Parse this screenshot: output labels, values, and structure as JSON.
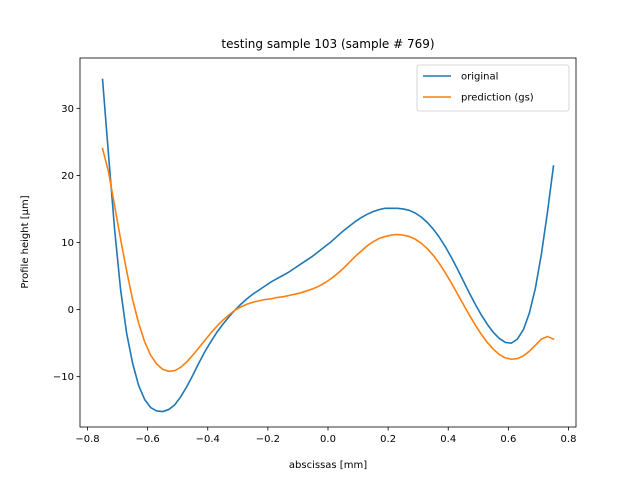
{
  "chart_data": {
    "type": "line",
    "title": "testing sample 103 (sample # 769)",
    "xlabel": "abscissas [mm]",
    "ylabel": "Profile height [μm]",
    "xlim": [
      -0.825,
      0.825
    ],
    "ylim": [
      -17.5,
      37.5
    ],
    "xticks": [
      -0.8,
      -0.6,
      -0.4,
      -0.2,
      0.0,
      0.2,
      0.4,
      0.6,
      0.8
    ],
    "xtick_labels": [
      "−0.8",
      "−0.6",
      "−0.4",
      "−0.2",
      "0.0",
      "0.2",
      "0.4",
      "0.6",
      "0.8"
    ],
    "yticks": [
      -10,
      0,
      10,
      20,
      30
    ],
    "ytick_labels": [
      "−10",
      "0",
      "10",
      "20",
      "30"
    ],
    "grid": false,
    "legend_position": "top-right",
    "series": [
      {
        "name": "original",
        "color": "#1f77b4",
        "points": [
          [
            -0.75,
            34.3
          ],
          [
            -0.73,
            23.0
          ],
          [
            -0.71,
            12.0
          ],
          [
            -0.69,
            3.0
          ],
          [
            -0.67,
            -3.5
          ],
          [
            -0.65,
            -8.0
          ],
          [
            -0.63,
            -11.3
          ],
          [
            -0.61,
            -13.4
          ],
          [
            -0.59,
            -14.6
          ],
          [
            -0.57,
            -15.1
          ],
          [
            -0.55,
            -15.2
          ],
          [
            -0.53,
            -14.9
          ],
          [
            -0.51,
            -14.2
          ],
          [
            -0.49,
            -13.0
          ],
          [
            -0.47,
            -11.5
          ],
          [
            -0.45,
            -9.8
          ],
          [
            -0.43,
            -8.0
          ],
          [
            -0.41,
            -6.3
          ],
          [
            -0.39,
            -4.8
          ],
          [
            -0.37,
            -3.4
          ],
          [
            -0.35,
            -2.2
          ],
          [
            -0.33,
            -1.1
          ],
          [
            -0.31,
            -0.1
          ],
          [
            -0.29,
            0.8
          ],
          [
            -0.27,
            1.6
          ],
          [
            -0.25,
            2.3
          ],
          [
            -0.23,
            2.9
          ],
          [
            -0.21,
            3.5
          ],
          [
            -0.19,
            4.1
          ],
          [
            -0.17,
            4.6
          ],
          [
            -0.15,
            5.1
          ],
          [
            -0.13,
            5.6
          ],
          [
            -0.11,
            6.2
          ],
          [
            -0.09,
            6.8
          ],
          [
            -0.07,
            7.4
          ],
          [
            -0.05,
            8.0
          ],
          [
            -0.03,
            8.7
          ],
          [
            -0.01,
            9.4
          ],
          [
            0.01,
            10.1
          ],
          [
            0.03,
            10.9
          ],
          [
            0.05,
            11.7
          ],
          [
            0.07,
            12.4
          ],
          [
            0.09,
            13.1
          ],
          [
            0.11,
            13.7
          ],
          [
            0.13,
            14.2
          ],
          [
            0.15,
            14.6
          ],
          [
            0.17,
            14.9
          ],
          [
            0.19,
            15.1
          ],
          [
            0.21,
            15.1
          ],
          [
            0.23,
            15.1
          ],
          [
            0.25,
            15.0
          ],
          [
            0.27,
            14.8
          ],
          [
            0.29,
            14.4
          ],
          [
            0.31,
            13.8
          ],
          [
            0.33,
            13.0
          ],
          [
            0.35,
            12.0
          ],
          [
            0.37,
            10.8
          ],
          [
            0.39,
            9.4
          ],
          [
            0.41,
            7.8
          ],
          [
            0.43,
            6.1
          ],
          [
            0.45,
            4.3
          ],
          [
            0.47,
            2.5
          ],
          [
            0.49,
            0.8
          ],
          [
            0.51,
            -0.8
          ],
          [
            0.53,
            -2.2
          ],
          [
            0.55,
            -3.4
          ],
          [
            0.57,
            -4.3
          ],
          [
            0.59,
            -4.9
          ],
          [
            0.61,
            -5.0
          ],
          [
            0.63,
            -4.4
          ],
          [
            0.65,
            -3.0
          ],
          [
            0.67,
            -0.5
          ],
          [
            0.69,
            3.2
          ],
          [
            0.71,
            8.3
          ],
          [
            0.73,
            14.5
          ],
          [
            0.75,
            21.4
          ]
        ]
      },
      {
        "name": "prediction (gs)",
        "color": "#ff7f0e",
        "points": [
          [
            -0.75,
            24.0
          ],
          [
            -0.73,
            20.5
          ],
          [
            -0.71,
            15.5
          ],
          [
            -0.69,
            10.5
          ],
          [
            -0.67,
            5.8
          ],
          [
            -0.65,
            1.5
          ],
          [
            -0.63,
            -2.0
          ],
          [
            -0.61,
            -4.8
          ],
          [
            -0.59,
            -6.8
          ],
          [
            -0.57,
            -8.1
          ],
          [
            -0.55,
            -8.9
          ],
          [
            -0.53,
            -9.2
          ],
          [
            -0.51,
            -9.1
          ],
          [
            -0.49,
            -8.6
          ],
          [
            -0.47,
            -7.8
          ],
          [
            -0.45,
            -6.8
          ],
          [
            -0.43,
            -5.7
          ],
          [
            -0.41,
            -4.6
          ],
          [
            -0.39,
            -3.5
          ],
          [
            -0.37,
            -2.5
          ],
          [
            -0.35,
            -1.6
          ],
          [
            -0.33,
            -0.8
          ],
          [
            -0.31,
            -0.1
          ],
          [
            -0.29,
            0.4
          ],
          [
            -0.27,
            0.8
          ],
          [
            -0.25,
            1.1
          ],
          [
            -0.23,
            1.3
          ],
          [
            -0.21,
            1.5
          ],
          [
            -0.19,
            1.6
          ],
          [
            -0.17,
            1.8
          ],
          [
            -0.15,
            1.9
          ],
          [
            -0.13,
            2.1
          ],
          [
            -0.11,
            2.3
          ],
          [
            -0.09,
            2.5
          ],
          [
            -0.07,
            2.8
          ],
          [
            -0.05,
            3.1
          ],
          [
            -0.03,
            3.5
          ],
          [
            -0.01,
            4.0
          ],
          [
            0.01,
            4.6
          ],
          [
            0.03,
            5.3
          ],
          [
            0.05,
            6.1
          ],
          [
            0.07,
            7.0
          ],
          [
            0.09,
            7.9
          ],
          [
            0.11,
            8.7
          ],
          [
            0.13,
            9.5
          ],
          [
            0.15,
            10.1
          ],
          [
            0.17,
            10.6
          ],
          [
            0.19,
            10.9
          ],
          [
            0.21,
            11.1
          ],
          [
            0.23,
            11.2
          ],
          [
            0.25,
            11.1
          ],
          [
            0.27,
            10.9
          ],
          [
            0.29,
            10.5
          ],
          [
            0.31,
            9.9
          ],
          [
            0.33,
            9.1
          ],
          [
            0.35,
            8.1
          ],
          [
            0.37,
            6.9
          ],
          [
            0.39,
            5.5
          ],
          [
            0.41,
            4.0
          ],
          [
            0.43,
            2.4
          ],
          [
            0.45,
            0.8
          ],
          [
            0.47,
            -0.8
          ],
          [
            0.49,
            -2.3
          ],
          [
            0.51,
            -3.7
          ],
          [
            0.53,
            -4.9
          ],
          [
            0.55,
            -5.9
          ],
          [
            0.57,
            -6.7
          ],
          [
            0.59,
            -7.2
          ],
          [
            0.61,
            -7.4
          ],
          [
            0.63,
            -7.3
          ],
          [
            0.65,
            -6.9
          ],
          [
            0.67,
            -6.2
          ],
          [
            0.69,
            -5.3
          ],
          [
            0.71,
            -4.4
          ],
          [
            0.73,
            -4.0
          ],
          [
            0.75,
            -4.4
          ]
        ]
      }
    ]
  }
}
